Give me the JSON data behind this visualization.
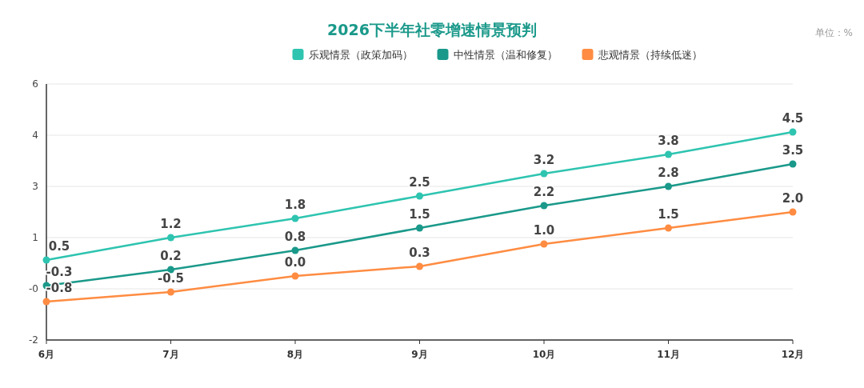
{
  "chart_data": {
    "type": "line",
    "title": "2026下半年社零增速情景预判",
    "annotations": [
      "单位：%"
    ],
    "categories": [
      "6月",
      "7月",
      "8月",
      "9月",
      "10月",
      "11月",
      "12月"
    ],
    "series": [
      {
        "name": "乐观情景（政策加码）",
        "color": "#2ec4b0",
        "values": [
          0.5,
          1.2,
          1.8,
          2.5,
          3.2,
          3.8,
          4.5
        ],
        "value_labels": [
          "0.5",
          "1.2",
          "1.8",
          "2.5",
          "3.2",
          "3.8",
          "4.5"
        ]
      },
      {
        "name": "中性情景（温和修复）",
        "color": "#1a998a",
        "values": [
          -0.3,
          0.2,
          0.8,
          1.5,
          2.2,
          2.8,
          3.5
        ],
        "value_labels": [
          "-0.3",
          "0.2",
          "0.8",
          "1.5",
          "2.2",
          "2.8",
          "3.5"
        ]
      },
      {
        "name": "悲观情景（持续低迷）",
        "color": "#ff8c42",
        "values": [
          -0.8,
          -0.5,
          0.0,
          0.3,
          1.0,
          1.5,
          2.0
        ],
        "value_labels": [
          "-0.8",
          "-0.5",
          "0.0",
          "0.3",
          "1.0",
          "1.5",
          "2.0"
        ]
      }
    ],
    "ylim": [
      -2,
      6
    ],
    "yticks": [
      -2,
      {
        "value": -0.4,
        "label": "-0"
      },
      {
        "value": 1.2,
        "label": "1"
      },
      {
        "value": 2.8,
        "label": "3"
      },
      {
        "value": 4.4,
        "label": "4"
      },
      6
    ],
    "grid": "y",
    "legend": "top",
    "marker": "circle",
    "line_style": "solid"
  }
}
